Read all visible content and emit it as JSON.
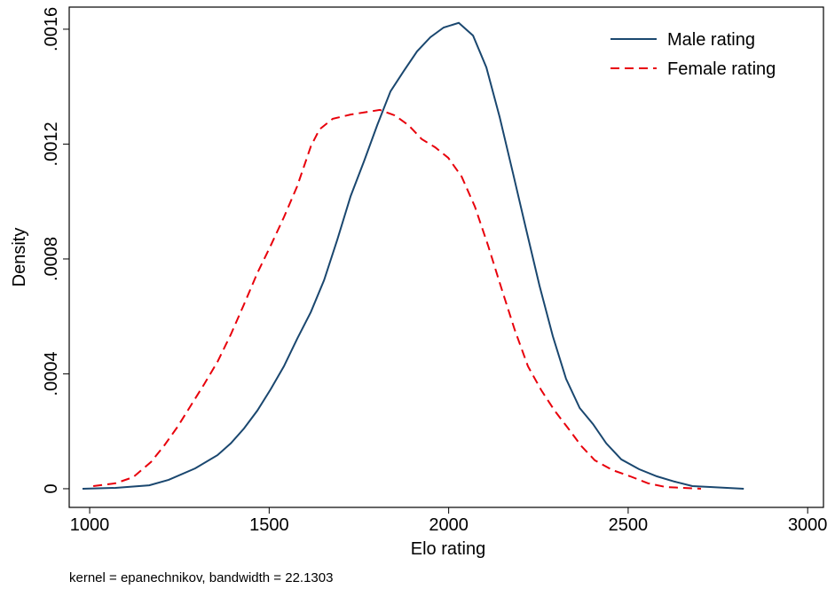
{
  "chart_data": {
    "type": "line",
    "x_label": "Elo rating",
    "y_label": "Density",
    "note": "kernel = epanechnikov, bandwidth = 22.1303",
    "xlim": [
      943,
      3044
    ],
    "xticks": [
      1000,
      1500,
      2000,
      2500,
      3000
    ],
    "ylim": [
      -6.5e-05,
      0.001677
    ],
    "yticks": [
      0,
      {
        "value": 0.0004,
        "label": ".0004"
      },
      {
        "value": 0.0008,
        "label": ".0008"
      },
      {
        "value": 0.0012,
        "label": ".0012"
      },
      {
        "value": 0.0016,
        "label": ".0016"
      }
    ],
    "legend": "top-right",
    "series": [
      {
        "name": "Male rating",
        "color": "#1a476f",
        "dash": "solid",
        "x": [
          980,
          1072,
          1166,
          1220,
          1294,
          1356,
          1393,
          1430,
          1467,
          1504,
          1541,
          1578,
          1616,
          1653,
          1690,
          1727,
          1764,
          1801,
          1838,
          1875,
          1912,
          1949,
          1986,
          2028,
          2068,
          2105,
          2142,
          2179,
          2216,
          2253,
          2290,
          2327,
          2365,
          2402,
          2439,
          2481,
          2530,
          2580,
          2629,
          2679,
          2728,
          2822
        ],
        "values": [
          0,
          3e-06,
          1.2e-05,
          3.1e-05,
          7.1e-05,
          0.000117,
          0.000158,
          0.00021,
          0.000272,
          0.000346,
          0.000426,
          0.000522,
          0.000615,
          0.000726,
          0.000868,
          0.001019,
          0.00114,
          0.001266,
          0.001384,
          0.001455,
          0.001523,
          0.001572,
          0.001606,
          0.001622,
          0.001578,
          0.001467,
          0.001294,
          0.0011,
          0.000902,
          0.000707,
          0.000531,
          0.000383,
          0.000281,
          0.000225,
          0.000158,
          0.000102,
          6.8e-05,
          4.3e-05,
          2.5e-05,
          9e-06,
          6e-06,
          0
        ]
      },
      {
        "name": "Female rating",
        "color": "#e8000b",
        "dash": "dashed",
        "x": [
          1010,
          1072,
          1121,
          1171,
          1208,
          1245,
          1282,
          1319,
          1356,
          1393,
          1430,
          1467,
          1504,
          1541,
          1578,
          1616,
          1640,
          1677,
          1727,
          1764,
          1808,
          1850,
          1888,
          1925,
          1962,
          1999,
          2036,
          2073,
          2110,
          2147,
          2184,
          2221,
          2258,
          2295,
          2333,
          2370,
          2407,
          2456,
          2506,
          2555,
          2604,
          2703
        ],
        "values": [
          9e-06,
          1.9e-05,
          4e-05,
          9.3e-05,
          0.000151,
          0.000216,
          0.00029,
          0.000364,
          0.000442,
          0.000537,
          0.000642,
          0.000751,
          0.000846,
          0.000945,
          0.001053,
          0.001192,
          0.001251,
          0.001288,
          0.001303,
          0.00131,
          0.001319,
          0.0013,
          0.001266,
          0.001217,
          0.001189,
          0.001152,
          0.001087,
          0.000982,
          0.000846,
          0.000698,
          0.000553,
          0.000426,
          0.000343,
          0.000272,
          0.00021,
          0.000148,
          9.9e-05,
          6.5e-05,
          4.3e-05,
          1.9e-05,
          6e-06,
          0
        ]
      }
    ]
  }
}
